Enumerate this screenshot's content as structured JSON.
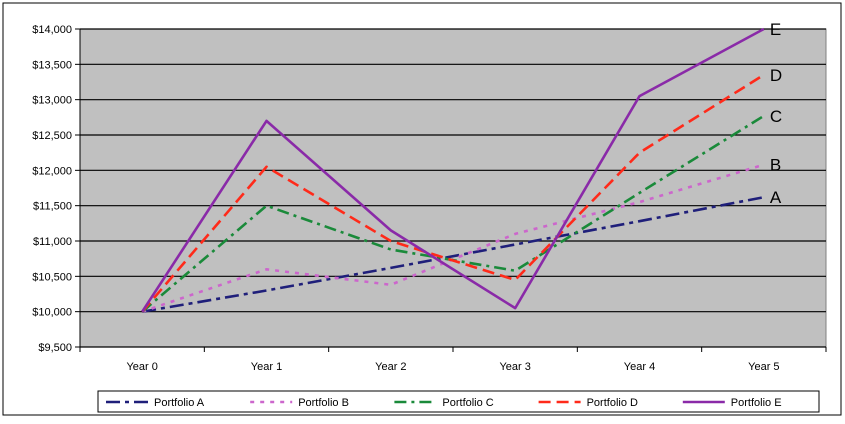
{
  "chart_data": {
    "type": "line",
    "categories": [
      "Year 0",
      "Year 1",
      "Year 2",
      "Year 3",
      "Year 4",
      "Year 5"
    ],
    "ylim": [
      9500,
      14000
    ],
    "y_ticks": [
      9500,
      10000,
      10500,
      11000,
      11500,
      12000,
      12500,
      13000,
      13500,
      14000
    ],
    "y_tick_labels": [
      "$9,500",
      "$10,000",
      "$10,500",
      "$11,000",
      "$11,500",
      "$12,000",
      "$12,500",
      "$13,000",
      "$13,500",
      "$14,000"
    ],
    "grid": true,
    "legend_position": "bottom",
    "plot_background": "#c0c0c0",
    "series": [
      {
        "name": "Portfolio A",
        "end_label": "A",
        "color": "#1f1f7a",
        "dash": "dashdot-long",
        "values": [
          10000,
          10300,
          10620,
          10950,
          11280,
          11620
        ]
      },
      {
        "name": "Portfolio B",
        "end_label": "B",
        "color": "#cc66cc",
        "dash": "dotted",
        "values": [
          10000,
          10600,
          10380,
          11100,
          11550,
          12080
        ]
      },
      {
        "name": "Portfolio C",
        "end_label": "C",
        "color": "#1a8a3a",
        "dash": "dashdot",
        "values": [
          10000,
          11500,
          10880,
          10580,
          11680,
          12770
        ]
      },
      {
        "name": "Portfolio D",
        "end_label": "D",
        "color": "#ff2a1a",
        "dash": "dashed",
        "values": [
          10000,
          12050,
          11000,
          10450,
          12250,
          13350
        ]
      },
      {
        "name": "Portfolio E",
        "end_label": "E",
        "color": "#8a2aa8",
        "dash": "solid",
        "values": [
          10000,
          12700,
          11150,
          10050,
          13050,
          14000
        ]
      }
    ]
  }
}
